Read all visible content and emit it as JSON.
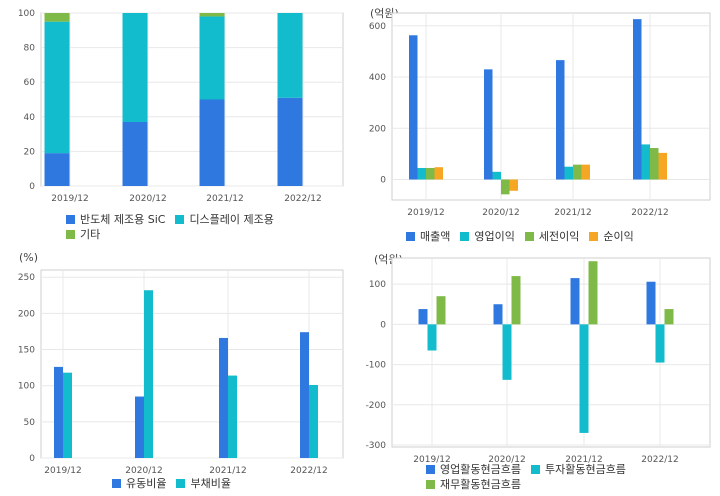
{
  "colors": {
    "blue": "#2e78e0",
    "cyan": "#13bccd",
    "green": "#7fba48",
    "orange": "#f5a623",
    "grid": "#e8e8e8",
    "frame": "#cfcfcf"
  },
  "chart_data": [
    {
      "type": "bar",
      "stacked": true,
      "unit": "",
      "categories": [
        "2019/12",
        "2020/12",
        "2021/12",
        "2022/12"
      ],
      "ylim": [
        0,
        100
      ],
      "yticks": [
        0,
        20,
        40,
        60,
        80,
        100
      ],
      "series": [
        {
          "name": "반도체 제조용 SiC",
          "color": "#2e78e0",
          "values": [
            19,
            37,
            50,
            51
          ]
        },
        {
          "name": "디스플레이 제조용",
          "color": "#13bccd",
          "values": [
            76,
            63,
            48,
            49
          ]
        },
        {
          "name": "기타",
          "color": "#7fba48",
          "values": [
            5,
            0,
            2,
            0
          ]
        }
      ],
      "legend_rows": [
        [
          "반도체 제조용 SiC",
          "디스플레이 제조용"
        ],
        [
          "기타"
        ]
      ]
    },
    {
      "type": "bar",
      "unit": "(억원)",
      "categories": [
        "2019/12",
        "2020/12",
        "2021/12",
        "2022/12"
      ],
      "ylim": [
        -80,
        650
      ],
      "yticks": [
        0,
        200,
        400,
        600
      ],
      "series": [
        {
          "name": "매출액",
          "color": "#2e78e0",
          "values": [
            563,
            430,
            466,
            626
          ]
        },
        {
          "name": "영업이익",
          "color": "#13bccd",
          "values": [
            45,
            30,
            50,
            137
          ]
        },
        {
          "name": "세전이익",
          "color": "#7fba48",
          "values": [
            45,
            -58,
            58,
            123
          ]
        },
        {
          "name": "순이익",
          "color": "#f5a623",
          "values": [
            48,
            -44,
            58,
            104
          ]
        }
      ],
      "legend_rows": [
        [
          "매출액",
          "영업이익",
          "세전이익",
          "순이익"
        ]
      ]
    },
    {
      "type": "bar",
      "unit": "(%)",
      "categories": [
        "2019/12",
        "2020/12",
        "2021/12",
        "2022/12"
      ],
      "ylim": [
        0,
        260
      ],
      "yticks": [
        0,
        50,
        100,
        150,
        200,
        250
      ],
      "series": [
        {
          "name": "유동비율",
          "color": "#2e78e0",
          "values": [
            126,
            85,
            166,
            174
          ]
        },
        {
          "name": "부채비율",
          "color": "#13bccd",
          "values": [
            118,
            232,
            114,
            101
          ]
        }
      ],
      "legend_rows": [
        [
          "유동비율",
          "부채비율"
        ]
      ]
    },
    {
      "type": "bar",
      "unit": "(억원)",
      "categories": [
        "2019/12",
        "2020/12",
        "2021/12",
        "2022/12"
      ],
      "ylim": [
        -305,
        165
      ],
      "yticks": [
        -300,
        -200,
        -100,
        0,
        100
      ],
      "series": [
        {
          "name": "영업활동현금흐름",
          "color": "#2e78e0",
          "values": [
            38,
            50,
            115,
            106
          ]
        },
        {
          "name": "투자활동현금흐름",
          "color": "#13bccd",
          "values": [
            -65,
            -138,
            -270,
            -95
          ]
        },
        {
          "name": "재무활동현금흐름",
          "color": "#7fba48",
          "values": [
            70,
            120,
            157,
            38
          ]
        }
      ],
      "legend_rows": [
        [
          "영업활동현금흐름",
          "투자활동현금흐름"
        ],
        [
          "재무활동현금흐름"
        ]
      ]
    }
  ]
}
